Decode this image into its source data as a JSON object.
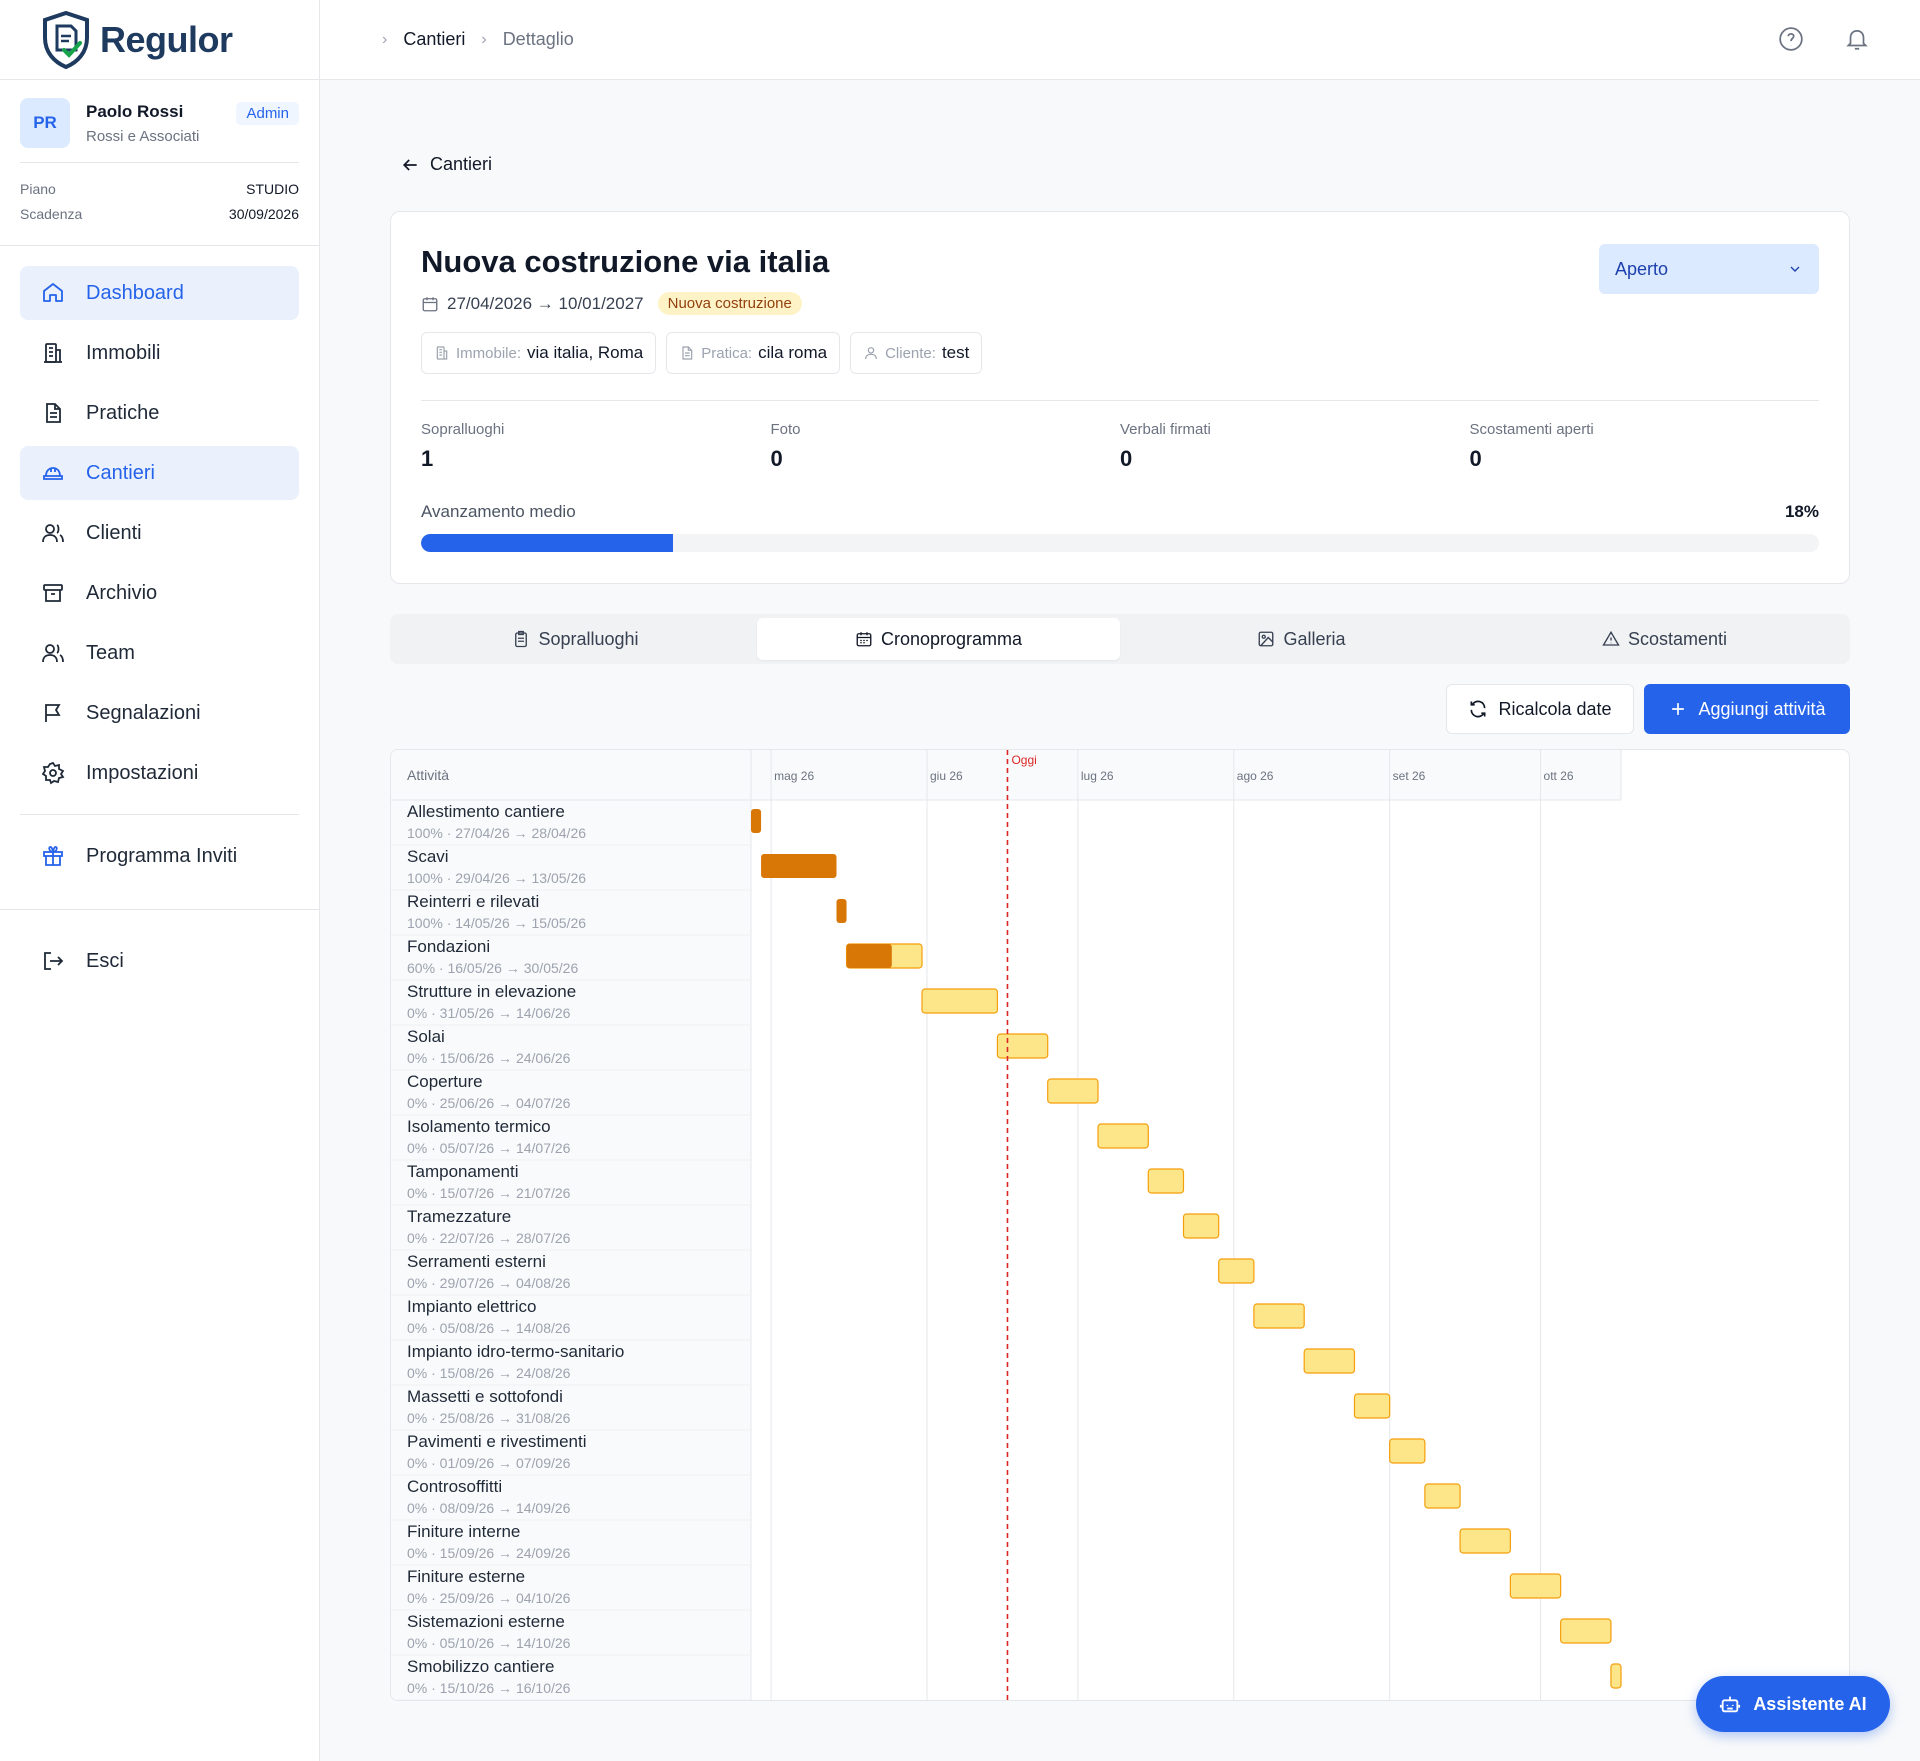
{
  "brand": {
    "name": "Regulor"
  },
  "user": {
    "initials": "PR",
    "name": "Paolo Rossi",
    "org": "Rossi e Associati",
    "role": "Admin"
  },
  "plan": {
    "plan_label": "Piano",
    "plan_value": "STUDIO",
    "expiry_label": "Scadenza",
    "expiry_value": "30/09/2026"
  },
  "nav": {
    "items": [
      {
        "label": "Dashboard",
        "icon": "home-icon"
      },
      {
        "label": "Immobili",
        "icon": "building-icon"
      },
      {
        "label": "Pratiche",
        "icon": "document-icon"
      },
      {
        "label": "Cantieri",
        "icon": "hardhat-icon"
      },
      {
        "label": "Clienti",
        "icon": "users-icon"
      },
      {
        "label": "Archivio",
        "icon": "archive-icon"
      },
      {
        "label": "Team",
        "icon": "team-icon"
      },
      {
        "label": "Segnalazioni",
        "icon": "flag-icon"
      },
      {
        "label": "Impostazioni",
        "icon": "gear-icon"
      }
    ],
    "invite": "Programma Inviti",
    "logout": "Esci"
  },
  "breadcrumb": {
    "first": "Cantieri",
    "second": "Dettaglio"
  },
  "back_label": "Cantieri",
  "site": {
    "title": "Nuova costruzione via italia",
    "dates": "27/04/2026 → 10/01/2027",
    "type": "Nuova costruzione",
    "status": "Aperto",
    "chips": [
      {
        "label": "Immobile:",
        "value": "via italia, Roma"
      },
      {
        "label": "Pratica:",
        "value": "cila roma"
      },
      {
        "label": "Cliente:",
        "value": "test"
      }
    ],
    "stats": [
      {
        "label": "Sopralluoghi",
        "value": "1"
      },
      {
        "label": "Foto",
        "value": "0"
      },
      {
        "label": "Verbali firmati",
        "value": "0"
      },
      {
        "label": "Scostamenti aperti",
        "value": "0"
      }
    ],
    "progress_label": "Avanzamento medio",
    "progress_text": "18%",
    "progress_value": 0.18
  },
  "tabs": [
    {
      "label": "Sopralluoghi",
      "icon": "clipboard-icon"
    },
    {
      "label": "Cronoprogramma",
      "icon": "calendar-icon"
    },
    {
      "label": "Galleria",
      "icon": "image-icon"
    },
    {
      "label": "Scostamenti",
      "icon": "warning-icon"
    }
  ],
  "actions": {
    "recalc": "Ricalcola date",
    "add": "Aggiungi attività"
  },
  "ai_assistant": "Assistente AI",
  "colors": {
    "accent": "#2563eb",
    "done": "#d97706",
    "todo": "#fde68a",
    "todo_border": "#f59e0b",
    "today": "#dc2626"
  },
  "chart_data": {
    "type": "gantt",
    "column_header": "Attività",
    "months": [
      {
        "label": "mag 26",
        "date": "2026-05-01"
      },
      {
        "label": "giu 26",
        "date": "2026-06-01"
      },
      {
        "label": "lug 26",
        "date": "2026-07-01"
      },
      {
        "label": "ago 26",
        "date": "2026-08-01"
      },
      {
        "label": "set 26",
        "date": "2026-09-01"
      },
      {
        "label": "ott 26",
        "date": "2026-10-01"
      }
    ],
    "today_label": "Oggi",
    "today_date": "2026-06-17",
    "tasks": [
      {
        "name": "Allestimento cantiere",
        "detail": "100% · 27/04/26 → 28/04/26",
        "progress": 100,
        "start": "2026-04-27",
        "end": "2026-04-28"
      },
      {
        "name": "Scavi",
        "detail": "100% · 29/04/26 → 13/05/26",
        "progress": 100,
        "start": "2026-04-29",
        "end": "2026-05-13"
      },
      {
        "name": "Reinterri e rilevati",
        "detail": "100% · 14/05/26 → 15/05/26",
        "progress": 100,
        "start": "2026-05-14",
        "end": "2026-05-15"
      },
      {
        "name": "Fondazioni",
        "detail": "60% · 16/05/26 → 30/05/26",
        "progress": 60,
        "start": "2026-05-16",
        "end": "2026-05-30"
      },
      {
        "name": "Strutture in elevazione",
        "detail": "0% · 31/05/26 → 14/06/26",
        "progress": 0,
        "start": "2026-05-31",
        "end": "2026-06-14"
      },
      {
        "name": "Solai",
        "detail": "0% · 15/06/26 → 24/06/26",
        "progress": 0,
        "start": "2026-06-15",
        "end": "2026-06-24"
      },
      {
        "name": "Coperture",
        "detail": "0% · 25/06/26 → 04/07/26",
        "progress": 0,
        "start": "2026-06-25",
        "end": "2026-07-04"
      },
      {
        "name": "Isolamento termico",
        "detail": "0% · 05/07/26 → 14/07/26",
        "progress": 0,
        "start": "2026-07-05",
        "end": "2026-07-14"
      },
      {
        "name": "Tamponamenti",
        "detail": "0% · 15/07/26 → 21/07/26",
        "progress": 0,
        "start": "2026-07-15",
        "end": "2026-07-21"
      },
      {
        "name": "Tramezzature",
        "detail": "0% · 22/07/26 → 28/07/26",
        "progress": 0,
        "start": "2026-07-22",
        "end": "2026-07-28"
      },
      {
        "name": "Serramenti esterni",
        "detail": "0% · 29/07/26 → 04/08/26",
        "progress": 0,
        "start": "2026-07-29",
        "end": "2026-08-04"
      },
      {
        "name": "Impianto elettrico",
        "detail": "0% · 05/08/26 → 14/08/26",
        "progress": 0,
        "start": "2026-08-05",
        "end": "2026-08-14"
      },
      {
        "name": "Impianto idro-termo-sanitario",
        "detail": "0% · 15/08/26 → 24/08/26",
        "progress": 0,
        "start": "2026-08-15",
        "end": "2026-08-24"
      },
      {
        "name": "Massetti e sottofondi",
        "detail": "0% · 25/08/26 → 31/08/26",
        "progress": 0,
        "start": "2026-08-25",
        "end": "2026-08-31"
      },
      {
        "name": "Pavimenti e rivestimenti",
        "detail": "0% · 01/09/26 → 07/09/26",
        "progress": 0,
        "start": "2026-09-01",
        "end": "2026-09-07"
      },
      {
        "name": "Controsoffitti",
        "detail": "0% · 08/09/26 → 14/09/26",
        "progress": 0,
        "start": "2026-09-08",
        "end": "2026-09-14"
      },
      {
        "name": "Finiture interne",
        "detail": "0% · 15/09/26 → 24/09/26",
        "progress": 0,
        "start": "2026-09-15",
        "end": "2026-09-24"
      },
      {
        "name": "Finiture esterne",
        "detail": "0% · 25/09/26 → 04/10/26",
        "progress": 0,
        "start": "2026-09-25",
        "end": "2026-10-04"
      },
      {
        "name": "Sistemazioni esterne",
        "detail": "0% · 05/10/26 → 14/10/26",
        "progress": 0,
        "start": "2026-10-05",
        "end": "2026-10-14"
      },
      {
        "name": "Smobilizzo cantiere",
        "detail": "0% · 15/10/26 → 16/10/26",
        "progress": 0,
        "start": "2026-10-15",
        "end": "2026-10-16"
      }
    ]
  }
}
